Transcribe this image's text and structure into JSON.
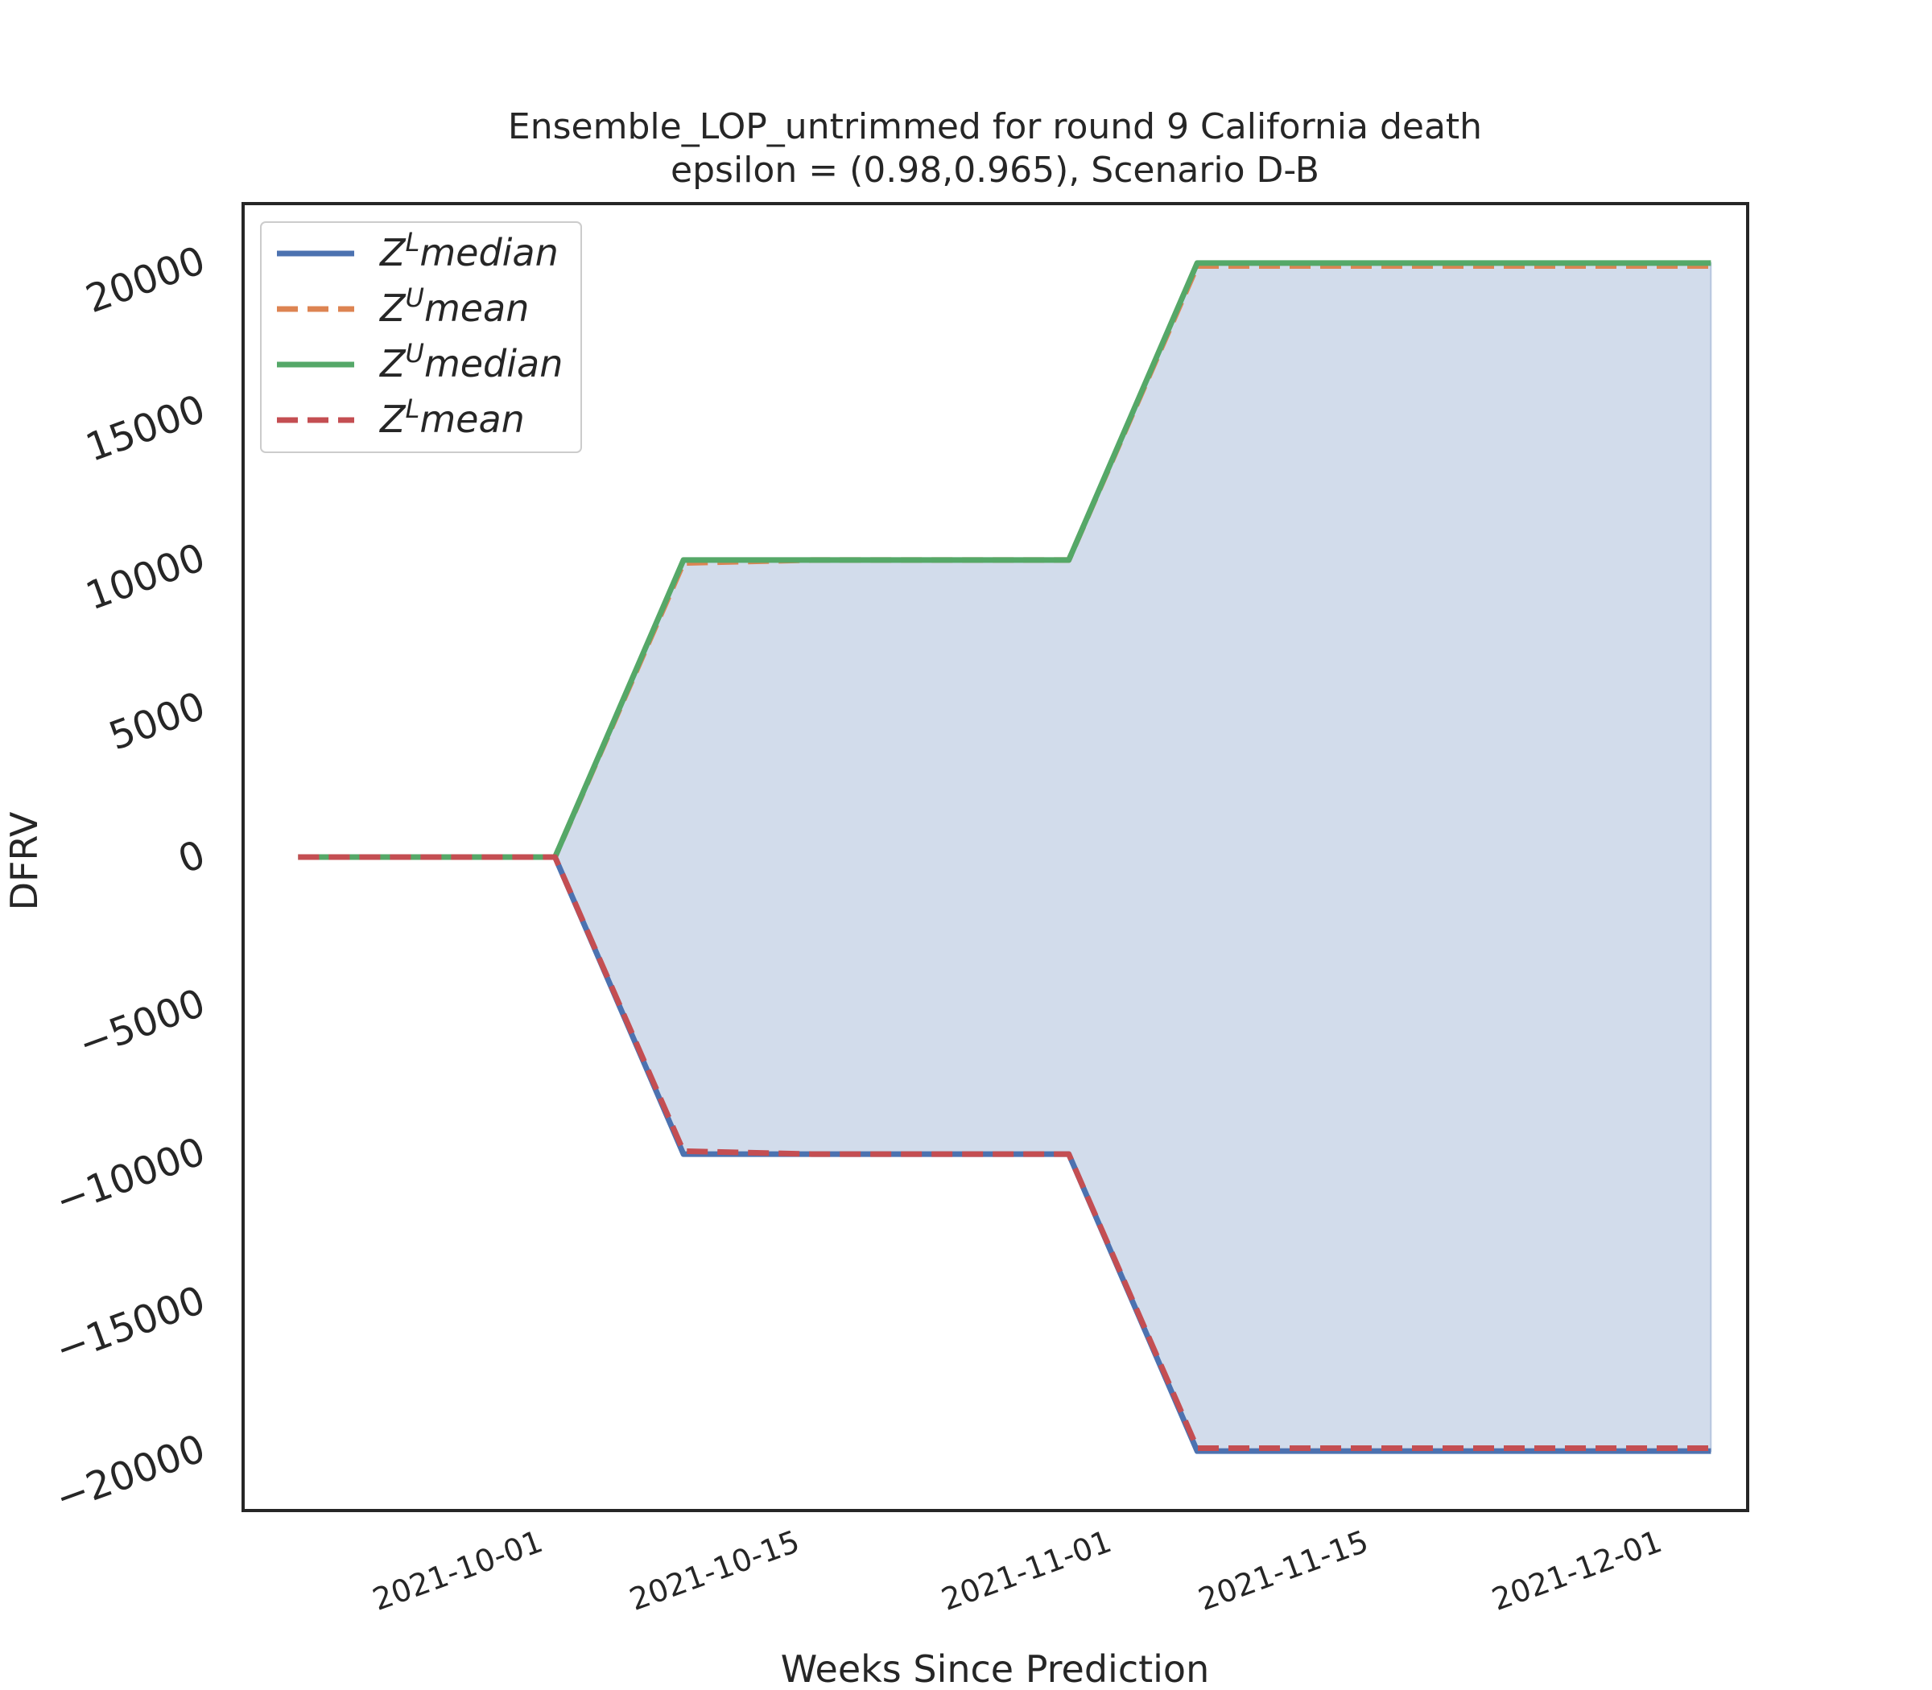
{
  "chart_data": {
    "type": "line",
    "title": "Ensemble_LOP_untrimmed for round 9 California  death",
    "subtitle": "epsilon = (0.98,0.965), Scenario D-B",
    "xlabel": "Weeks Since Prediction",
    "ylabel": "DFRV",
    "x": [
      "2021-09-18",
      "2021-09-25",
      "2021-10-02",
      "2021-10-09",
      "2021-10-16",
      "2021-10-23",
      "2021-10-30",
      "2021-11-06",
      "2021-11-13",
      "2021-11-20",
      "2021-11-27",
      "2021-12-04"
    ],
    "xlim": [
      "2021-09-15",
      "2021-12-06"
    ],
    "xticks": [
      "2021-10-01",
      "2021-10-15",
      "2021-11-01",
      "2021-11-15",
      "2021-12-01"
    ],
    "ylim": [
      -22000,
      22000
    ],
    "yticks": [
      20000,
      15000,
      10000,
      5000,
      0,
      -5000,
      -10000,
      -15000,
      -20000
    ],
    "ytick_labels": [
      "20000",
      "15000",
      "10000",
      "5000",
      "0",
      "−5000",
      "−10000",
      "−15000",
      "−20000"
    ],
    "series": [
      {
        "name": "Z^L median",
        "name_base": "Z",
        "name_sup": "L",
        "name_rest": "median",
        "color": "#4c72b0",
        "dash": "solid",
        "values": [
          0,
          0,
          0,
          -10000,
          -10000,
          -10000,
          -10000,
          -20000,
          -20000,
          -20000,
          -20000,
          -20000
        ]
      },
      {
        "name": "Z^U mean",
        "name_base": "Z",
        "name_sup": "U",
        "name_rest": "mean",
        "color": "#dd8452",
        "dash": "dashed",
        "values": [
          0,
          0,
          0,
          9900,
          10000,
          10000,
          10000,
          19900,
          19900,
          19900,
          19900,
          19900
        ]
      },
      {
        "name": "Z^U median",
        "name_base": "Z",
        "name_sup": "U",
        "name_rest": "median",
        "color": "#55a868",
        "dash": "solid",
        "values": [
          0,
          0,
          0,
          10000,
          10000,
          10000,
          10000,
          20000,
          20000,
          20000,
          20000,
          20000
        ]
      },
      {
        "name": "Z^L mean",
        "name_base": "Z",
        "name_sup": "L",
        "name_rest": "mean",
        "color": "#c44e52",
        "dash": "dashed",
        "values": [
          0,
          0,
          0,
          -9900,
          -10000,
          -10000,
          -10000,
          -19900,
          -19900,
          -19900,
          -19900,
          -19900
        ]
      }
    ],
    "fill_between": {
      "lower": "Z^L median",
      "upper": "Z^U median",
      "color": "#4c72b0",
      "opacity": 0.25
    },
    "legend_position": "upper-left",
    "grid": false
  }
}
